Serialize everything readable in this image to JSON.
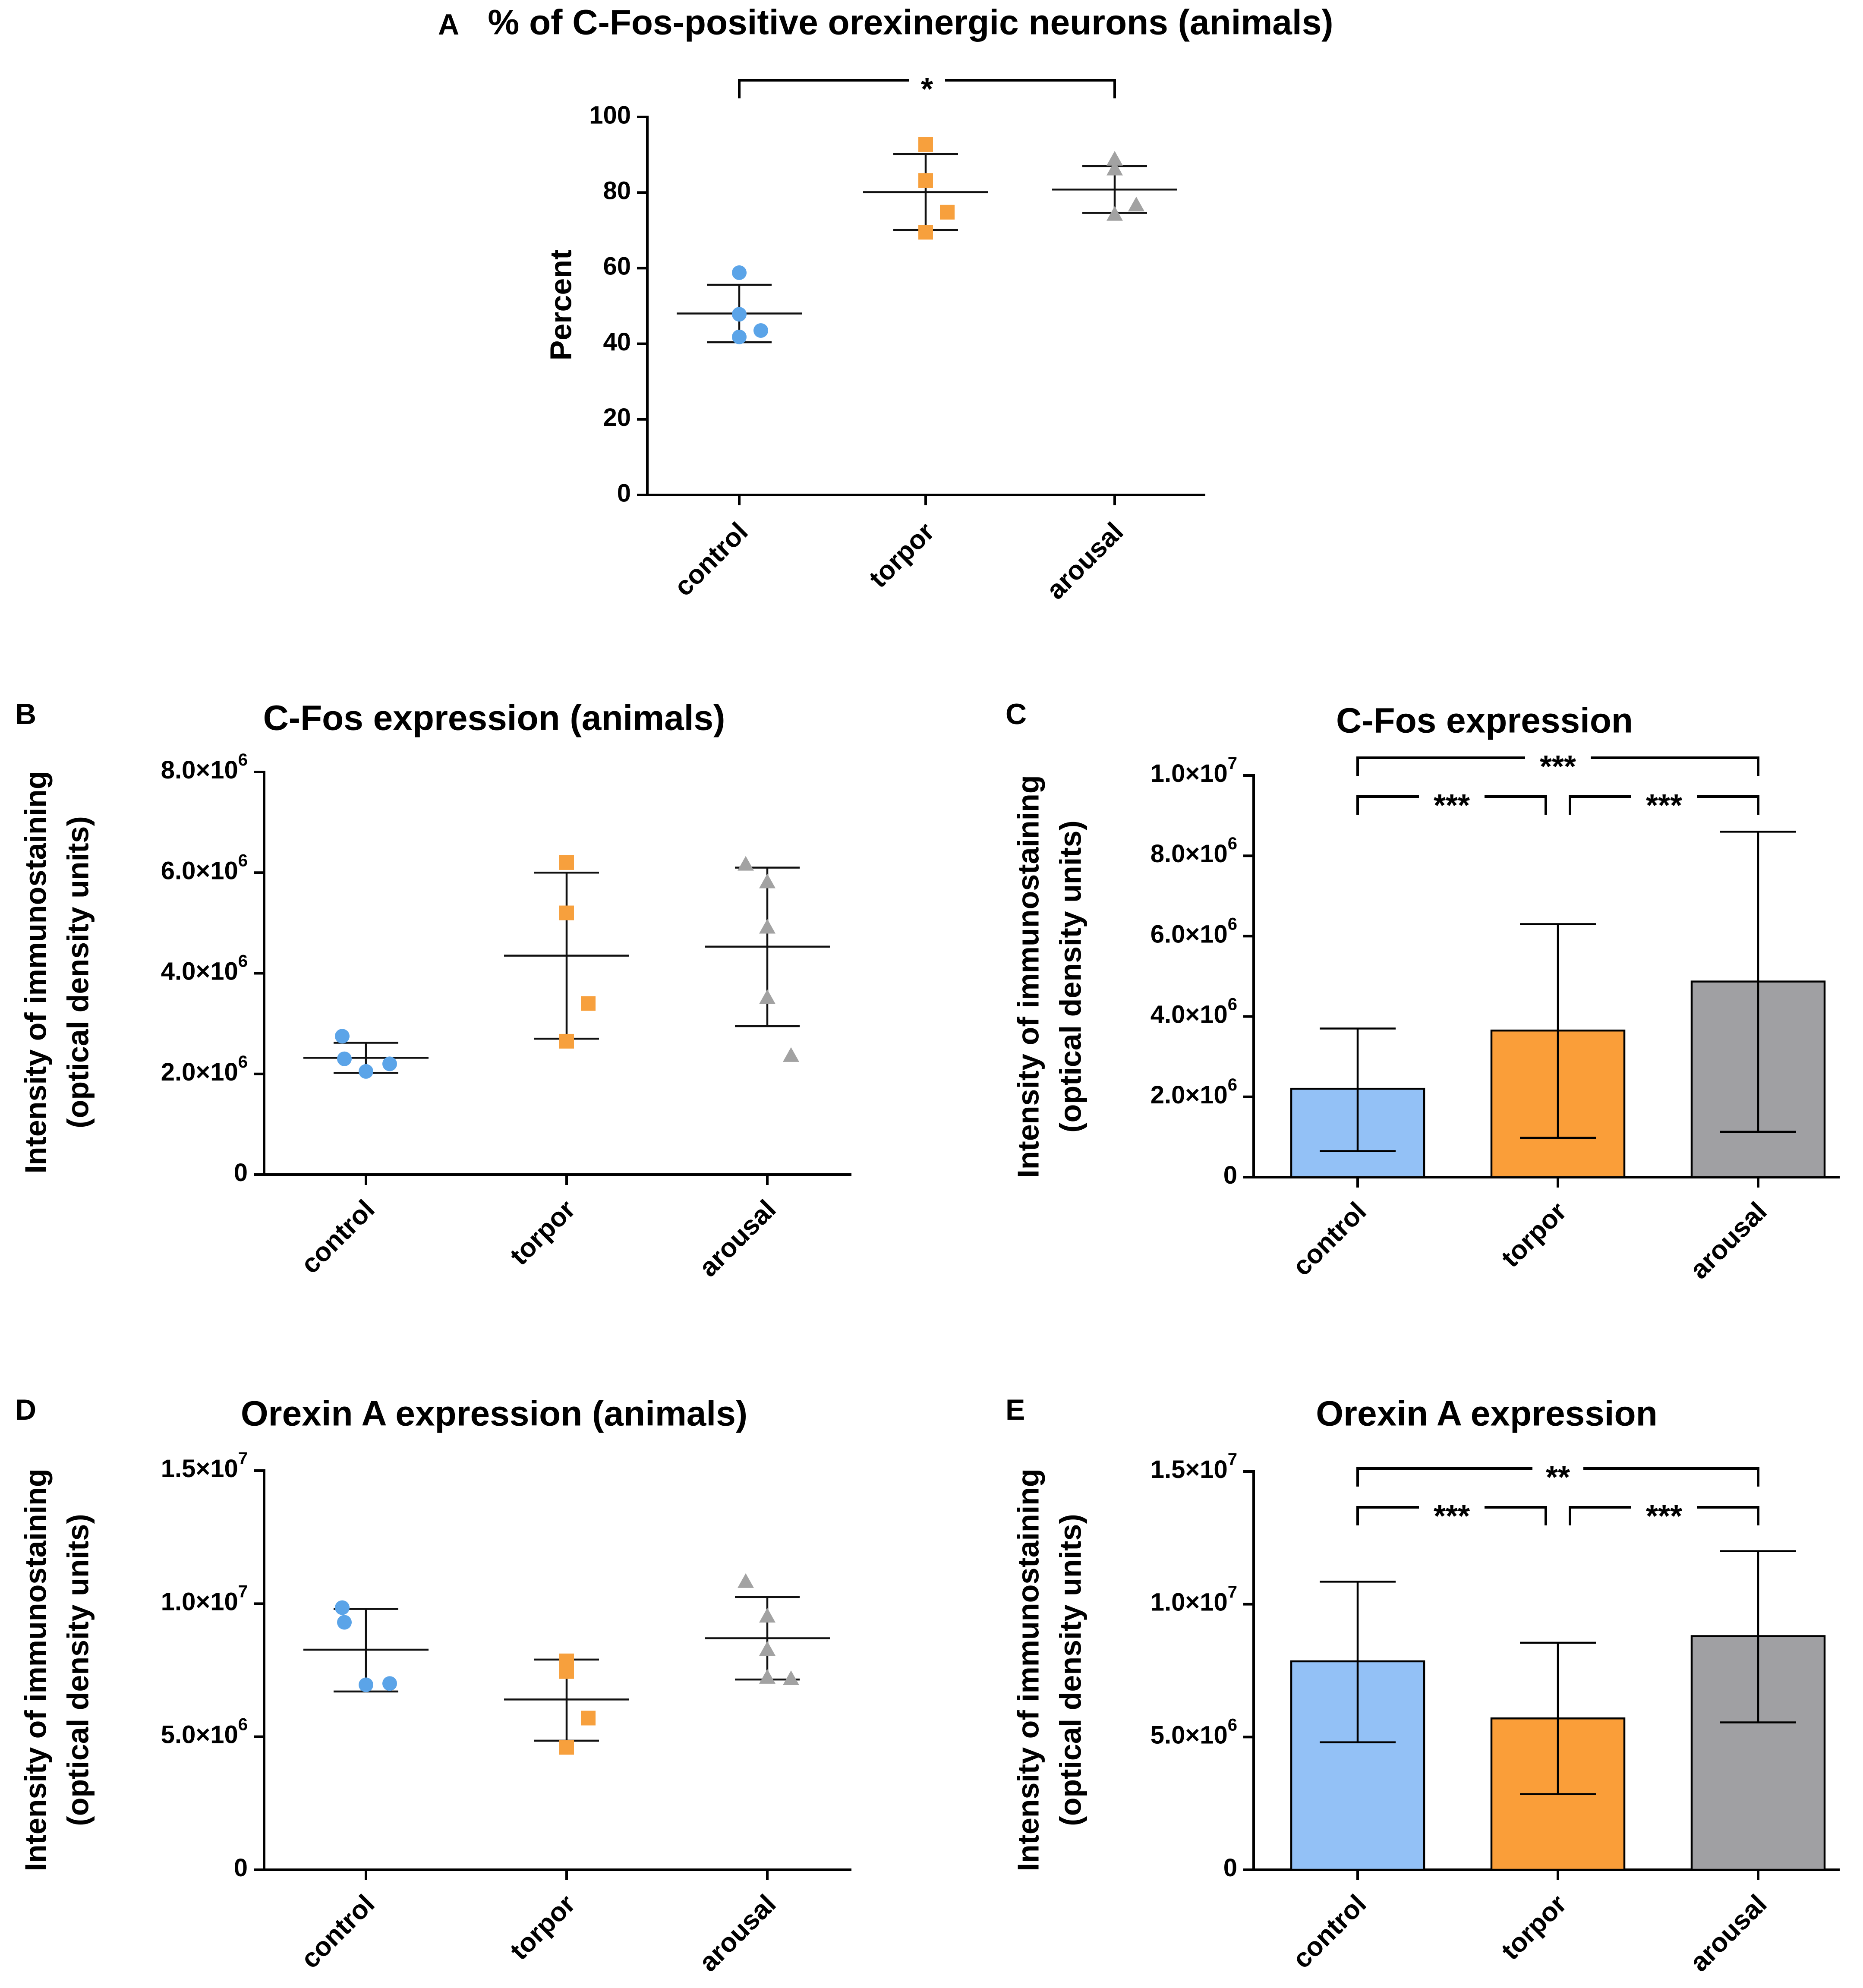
{
  "figure": {
    "colors": {
      "control": "#5ba4e8",
      "torpor": "#f7a03d",
      "arousal": "#a2a2a2",
      "control_bar": "#93c1f6",
      "torpor_bar": "#fa9e39",
      "arousal_bar": "#a0a0a3",
      "axis": "#000000"
    }
  },
  "chart_data": [
    {
      "panel": "A",
      "type": "scatter",
      "title": "% of C-Fos-positive orexinergic neurons (animals)",
      "xlabel": "",
      "ylabel": "Percent",
      "ylim": [
        0,
        100
      ],
      "yticks": [
        0,
        20,
        40,
        60,
        80,
        100
      ],
      "ytick_labels": [
        "0",
        "20",
        "40",
        "60",
        "80",
        "100"
      ],
      "categories": [
        "control",
        "torpor",
        "arousal"
      ],
      "series": [
        {
          "name": "control",
          "marker": "circle",
          "points": [
            58.8,
            47.8,
            43.5,
            41.8
          ],
          "mean": 48.0,
          "sd_low": 40.4,
          "sd_high": 55.6
        },
        {
          "name": "torpor",
          "marker": "square",
          "points": [
            92.7,
            83.2,
            74.8,
            69.5
          ],
          "mean": 80.1,
          "sd_low": 70.1,
          "sd_high": 90.2
        },
        {
          "name": "arousal",
          "marker": "triangle",
          "points": [
            88.6,
            86.0,
            76.5,
            74.0
          ],
          "mean": 80.8,
          "sd_low": 74.6,
          "sd_high": 87.0
        }
      ],
      "significance": [
        {
          "from": "control",
          "to": "arousal",
          "label": "*"
        }
      ]
    },
    {
      "panel": "B",
      "type": "scatter",
      "title": "C-Fos expression (animals)",
      "xlabel": "",
      "ylabel": [
        "Intensity of immunostaining",
        "(optical density units)"
      ],
      "ylim": [
        0,
        8000000
      ],
      "yticks": [
        0,
        2000000,
        4000000,
        6000000,
        8000000
      ],
      "ytick_labels": [
        {
          "m": "0",
          "e": ""
        },
        {
          "m": "2.0×10",
          "e": "6"
        },
        {
          "m": "4.0×10",
          "e": "6"
        },
        {
          "m": "6.0×10",
          "e": "6"
        },
        {
          "m": "8.0×10",
          "e": "6"
        }
      ],
      "categories": [
        "control",
        "torpor",
        "arousal"
      ],
      "series": [
        {
          "name": "control",
          "marker": "circle",
          "points": [
            2750000,
            2300000,
            2200000,
            2050000
          ],
          "mean": 2320000,
          "sd_low": 2020000,
          "sd_high": 2620000
        },
        {
          "name": "torpor",
          "marker": "square",
          "points": [
            6200000,
            5200000,
            3400000,
            2650000
          ],
          "mean": 4350000,
          "sd_low": 2700000,
          "sd_high": 6000000
        },
        {
          "name": "arousal",
          "marker": "triangle",
          "points": [
            6150000,
            5800000,
            4900000,
            3500000,
            2350000
          ],
          "mean": 4530000,
          "sd_low": 2950000,
          "sd_high": 6100000
        }
      ],
      "significance": []
    },
    {
      "panel": "C",
      "type": "bar",
      "title": "C-Fos expression",
      "xlabel": "",
      "ylabel": [
        "Intensity of immunostaining",
        "(optical density units)"
      ],
      "ylim": [
        0,
        10000000
      ],
      "yticks": [
        0,
        2000000,
        4000000,
        6000000,
        8000000,
        10000000
      ],
      "ytick_labels": [
        {
          "m": "0",
          "e": ""
        },
        {
          "m": "2.0×10",
          "e": "6"
        },
        {
          "m": "4.0×10",
          "e": "6"
        },
        {
          "m": "6.0×10",
          "e": "6"
        },
        {
          "m": "8.0×10",
          "e": "6"
        },
        {
          "m": "1.0×10",
          "e": "7"
        }
      ],
      "categories": [
        "control",
        "torpor",
        "arousal"
      ],
      "values": [
        2200000,
        3650000,
        4870000
      ],
      "err_low": [
        650000,
        980000,
        1130000
      ],
      "err_high": [
        3700000,
        6300000,
        8600000
      ],
      "significance": [
        {
          "from": "control",
          "to": "arousal",
          "label": "***",
          "level": 2
        },
        {
          "from": "control",
          "to": "torpor",
          "label": "***",
          "level": 1
        },
        {
          "from": "torpor",
          "to": "arousal",
          "label": "***",
          "level": 1
        }
      ]
    },
    {
      "panel": "D",
      "type": "scatter",
      "title": "Orexin A expression (animals)",
      "xlabel": "",
      "ylabel": [
        "Intensity of immunostaining",
        "(optical density units)"
      ],
      "ylim": [
        0,
        15000000
      ],
      "yticks": [
        0,
        5000000,
        10000000,
        15000000
      ],
      "ytick_labels": [
        {
          "m": "0",
          "e": ""
        },
        {
          "m": "5.0×10",
          "e": "6"
        },
        {
          "m": "1.0×10",
          "e": "7"
        },
        {
          "m": "1.5×10",
          "e": "7"
        }
      ],
      "categories": [
        "control",
        "torpor",
        "arousal"
      ],
      "series": [
        {
          "name": "control",
          "marker": "circle",
          "points": [
            9850000,
            9300000,
            7000000,
            6950000
          ],
          "mean": 8270000,
          "sd_low": 6700000,
          "sd_high": 9800000
        },
        {
          "name": "torpor",
          "marker": "square",
          "points": [
            7850000,
            7450000,
            5700000,
            4600000
          ],
          "mean": 6400000,
          "sd_low": 4850000,
          "sd_high": 7900000
        },
        {
          "name": "arousal",
          "marker": "triangle",
          "points": [
            10800000,
            9500000,
            8250000,
            7200000,
            7150000
          ],
          "mean": 8700000,
          "sd_low": 7150000,
          "sd_high": 10250000
        }
      ],
      "significance": []
    },
    {
      "panel": "E",
      "type": "bar",
      "title": "Orexin A expression",
      "xlabel": "",
      "ylabel": [
        "Intensity of immunostaining",
        "(optical density units)"
      ],
      "ylim": [
        0,
        15000000
      ],
      "yticks": [
        0,
        5000000,
        10000000,
        15000000
      ],
      "ytick_labels": [
        {
          "m": "0",
          "e": ""
        },
        {
          "m": "5.0×10",
          "e": "6"
        },
        {
          "m": "1.0×10",
          "e": "7"
        },
        {
          "m": "1.5×10",
          "e": "7"
        }
      ],
      "categories": [
        "control",
        "torpor",
        "arousal"
      ],
      "values": [
        7850000,
        5700000,
        8800000
      ],
      "err_low": [
        4800000,
        2850000,
        5550000
      ],
      "err_high": [
        10850000,
        8550000,
        12000000
      ],
      "significance": [
        {
          "from": "control",
          "to": "arousal",
          "label": "**",
          "level": 2
        },
        {
          "from": "control",
          "to": "torpor",
          "label": "***",
          "level": 1
        },
        {
          "from": "torpor",
          "to": "arousal",
          "label": "***",
          "level": 1
        }
      ]
    }
  ]
}
